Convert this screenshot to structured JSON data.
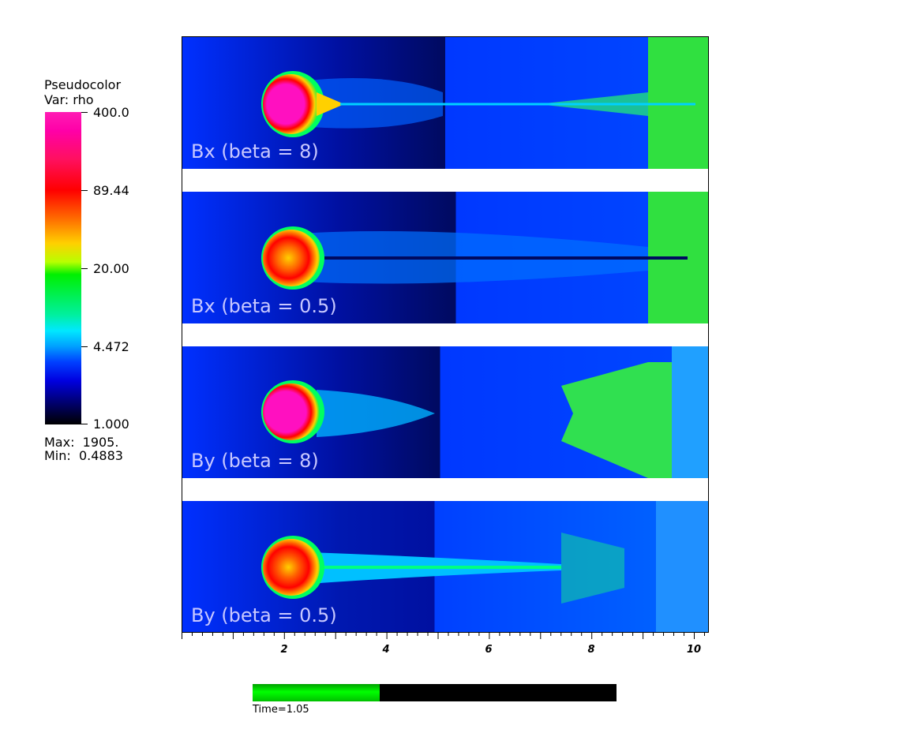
{
  "legend": {
    "title": "Pseudocolor",
    "var": "Var: rho",
    "ticks": [
      "400.0",
      "89.44",
      "20.00",
      "4.472",
      "1.000"
    ],
    "max": "Max:  1905.",
    "min": "Min:  0.4883"
  },
  "panels": [
    {
      "label": "Bx (beta = 8)"
    },
    {
      "label": "Bx (beta = 0.5)"
    },
    {
      "label": "By (beta = 8)"
    },
    {
      "label": "By (beta = 0.5)"
    }
  ],
  "axis": {
    "x_ticks": [
      "2",
      "4",
      "6",
      "8",
      "10"
    ]
  },
  "time": {
    "label": "Time=1.05",
    "progress": 0.35
  },
  "colors": {
    "background_field": "#0030ff",
    "panel_label": "#c8c8ff",
    "time_fill": "#00ff00"
  }
}
